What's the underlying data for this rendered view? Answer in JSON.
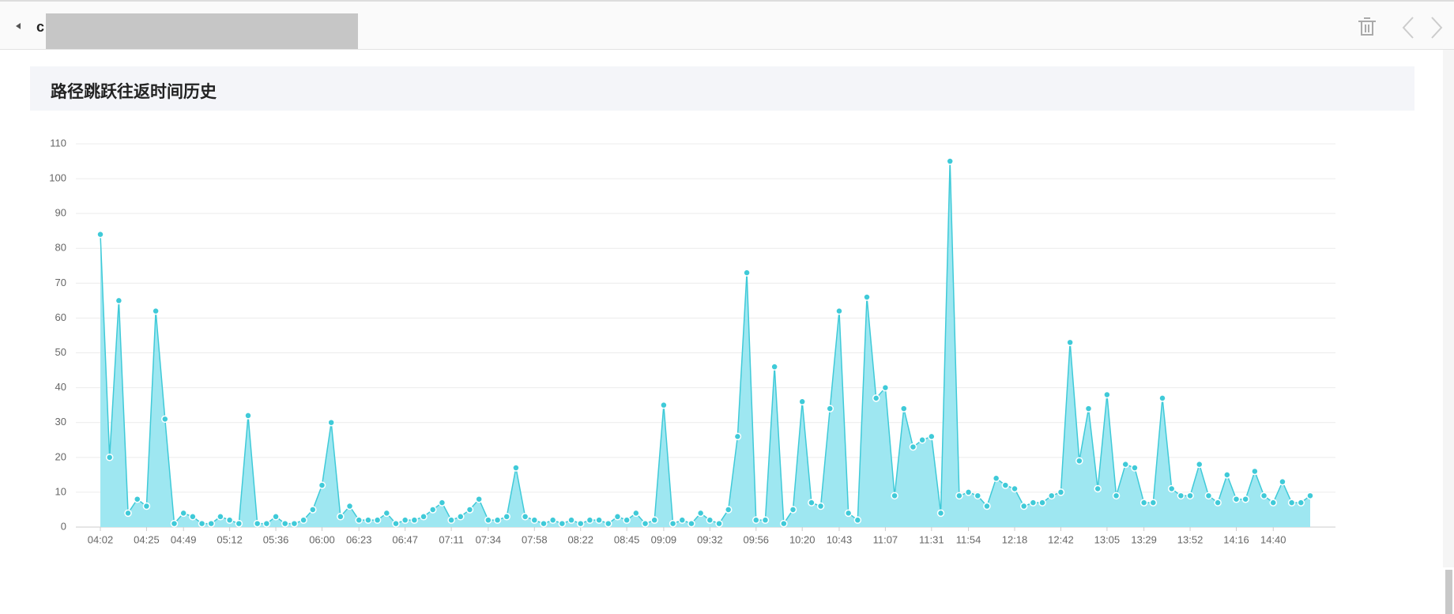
{
  "header": {
    "title": "c"
  },
  "panel": {
    "title": "路径跳跃往返时间历史"
  },
  "chart_data": {
    "type": "area",
    "color": "#3fcad8",
    "fill": "#9ee7f1",
    "grid": true,
    "categories": [
      "04:02",
      null,
      null,
      null,
      null,
      "04:25",
      null,
      null,
      null,
      "04:49",
      null,
      null,
      null,
      null,
      "05:12",
      null,
      null,
      null,
      null,
      "05:36",
      null,
      null,
      null,
      null,
      "06:00",
      null,
      null,
      null,
      "06:23",
      null,
      null,
      null,
      null,
      "06:47",
      null,
      null,
      null,
      null,
      "07:11",
      null,
      null,
      null,
      "07:34",
      null,
      null,
      null,
      null,
      "07:58",
      null,
      null,
      null,
      null,
      "08:22",
      null,
      null,
      null,
      null,
      "08:45",
      null,
      null,
      null,
      "09:09",
      null,
      null,
      null,
      null,
      "09:32",
      null,
      null,
      null,
      null,
      "09:56",
      null,
      null,
      null,
      null,
      "10:20",
      null,
      null,
      null,
      "10:43",
      null,
      null,
      null,
      null,
      "11:07",
      null,
      null,
      null,
      null,
      "11:31",
      null,
      null,
      null,
      "11:54",
      null,
      null,
      null,
      null,
      "12:18",
      null,
      null,
      null,
      null,
      "12:42",
      null,
      null,
      null,
      null,
      "13:05",
      null,
      null,
      null,
      "13:29",
      null,
      null,
      null,
      null,
      "13:52",
      null,
      null,
      null,
      null,
      "14:16",
      null,
      null,
      null,
      "14:40",
      null,
      null,
      null,
      null
    ],
    "values": [
      84,
      20,
      65,
      4,
      8,
      6,
      62,
      31,
      1,
      4,
      3,
      1,
      1,
      3,
      2,
      1,
      32,
      1,
      1,
      3,
      1,
      1,
      2,
      5,
      12,
      30,
      3,
      6,
      2,
      2,
      2,
      4,
      1,
      2,
      2,
      3,
      5,
      7,
      2,
      3,
      5,
      8,
      2,
      2,
      3,
      17,
      3,
      2,
      1,
      2,
      1,
      2,
      1,
      2,
      2,
      1,
      3,
      2,
      4,
      1,
      2,
      35,
      1,
      2,
      1,
      4,
      2,
      1,
      5,
      26,
      73,
      2,
      2,
      46,
      1,
      5,
      36,
      7,
      6,
      34,
      62,
      4,
      2,
      66,
      37,
      40,
      9,
      34,
      23,
      25,
      26,
      4,
      105,
      9,
      10,
      9,
      6,
      14,
      12,
      11,
      6,
      7,
      7,
      9,
      10,
      53,
      19,
      34,
      11,
      38,
      9,
      18,
      17,
      7,
      7,
      37,
      11,
      9,
      9,
      18,
      9,
      7,
      15,
      8,
      8,
      16,
      9,
      7,
      13,
      7,
      7,
      9
    ],
    "ylim": [
      0,
      110
    ],
    "yticks": [
      0,
      10,
      20,
      30,
      40,
      50,
      60,
      70,
      80,
      90,
      100,
      110
    ]
  }
}
